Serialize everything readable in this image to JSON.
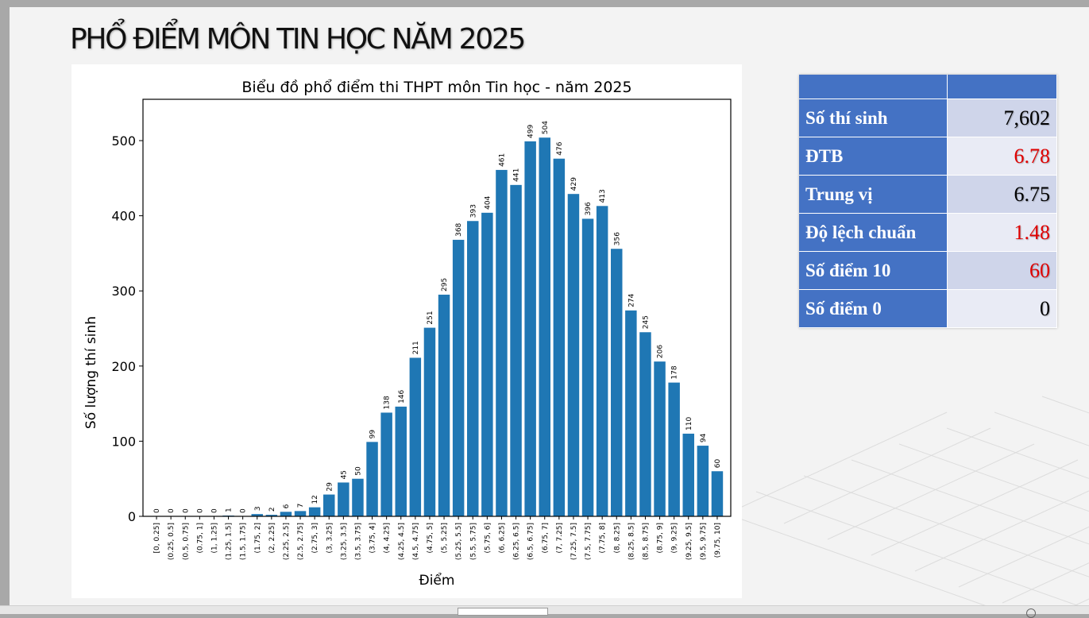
{
  "title": "PHỔ ĐIỂM MÔN TIN HỌC NĂM 2025",
  "chart_data": {
    "type": "bar",
    "title": "Biểu đồ phổ điểm thi THPT môn Tin học - năm 2025",
    "xlabel": "Điểm",
    "ylabel": "Số lượng thí sinh",
    "ylim": [
      0,
      555
    ],
    "yticks": [
      0,
      100,
      200,
      300,
      400,
      500
    ],
    "categories": [
      "[0, 0.25]",
      "(0.25, 0.5]",
      "(0.5, 0.75]",
      "(0.75, 1]",
      "(1, 1.25]",
      "(1.25, 1.5]",
      "(1.5, 1.75]",
      "(1.75, 2]",
      "(2, 2.25]",
      "(2.25, 2.5]",
      "(2.5, 2.75]",
      "(2.75, 3]",
      "(3, 3.25]",
      "(3.25, 3.5]",
      "(3.5, 3.75]",
      "(3.75, 4]",
      "(4, 4.25]",
      "(4.25, 4.5]",
      "(4.5, 4.75]",
      "(4.75, 5]",
      "(5, 5.25]",
      "(5.25, 5.5]",
      "(5.5, 5.75]",
      "(5.75, 6]",
      "(6, 6.25]",
      "(6.25, 6.5]",
      "(6.5, 6.75]",
      "(6.75, 7]",
      "(7, 7.25]",
      "(7.25, 7.5]",
      "(7.5, 7.75]",
      "(7.75, 8]",
      "(8, 8.25]",
      "(8.25, 8.5]",
      "(8.5, 8.75]",
      "(8.75, 9]",
      "(9, 9.25]",
      "(9.25, 9.5]",
      "(9.5, 9.75]",
      "(9.75, 10]"
    ],
    "values": [
      0,
      0,
      0,
      0,
      0,
      1,
      0,
      3,
      2,
      6,
      7,
      12,
      29,
      45,
      50,
      99,
      138,
      146,
      211,
      251,
      295,
      368,
      393,
      404,
      461,
      441,
      499,
      504,
      476,
      429,
      396,
      413,
      356,
      274,
      245,
      206,
      178,
      110,
      94,
      60
    ],
    "bar_color": "#1f77b4",
    "grid": false,
    "legend": false
  },
  "stats": {
    "rows": [
      {
        "label": "Số thí sinh",
        "value": "7,602",
        "color": "#000000"
      },
      {
        "label": "ĐTB",
        "value": "6.78",
        "color": "#e00000"
      },
      {
        "label": "Trung vị",
        "value": "6.75",
        "color": "#000000"
      },
      {
        "label": "Độ lệch chuẩn",
        "value": "1.48",
        "color": "#e00000"
      },
      {
        "label": "Số điểm 10",
        "value": "60",
        "color": "#e00000"
      },
      {
        "label": "Số điểm 0",
        "value": "0",
        "color": "#000000"
      }
    ]
  },
  "colors": {
    "header_blue": "#4472c4",
    "row_odd": "#cfd5ea",
    "row_even": "#e9ebf5",
    "highlight_red": "#e00000"
  }
}
